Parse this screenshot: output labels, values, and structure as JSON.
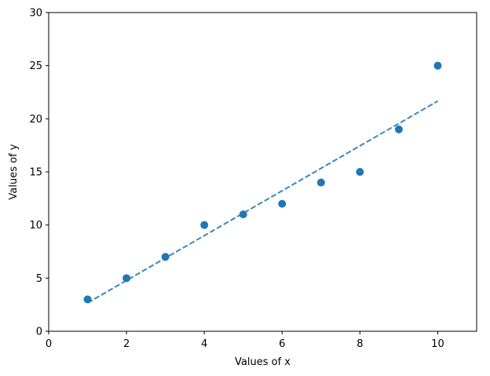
{
  "chart_data": {
    "type": "scatter",
    "title": "",
    "xlabel": "Values of x",
    "ylabel": "Values of y",
    "xlim": [
      0,
      11
    ],
    "ylim": [
      0,
      30
    ],
    "xticks": [
      0,
      2,
      4,
      6,
      8,
      10
    ],
    "yticks": [
      0,
      5,
      10,
      15,
      20,
      25,
      30
    ],
    "grid": false,
    "legend": "none",
    "series": [
      {
        "kind": "points",
        "color": "#1f77b4",
        "x": [
          1,
          2,
          3,
          4,
          5,
          6,
          7,
          8,
          9,
          10
        ],
        "y": [
          3,
          5,
          7,
          10,
          11,
          12,
          14,
          15,
          19,
          25
        ]
      },
      {
        "kind": "dashed-line",
        "color": "#3a86bd",
        "x": [
          1,
          10
        ],
        "y": [
          2.67,
          21.67
        ]
      }
    ]
  }
}
